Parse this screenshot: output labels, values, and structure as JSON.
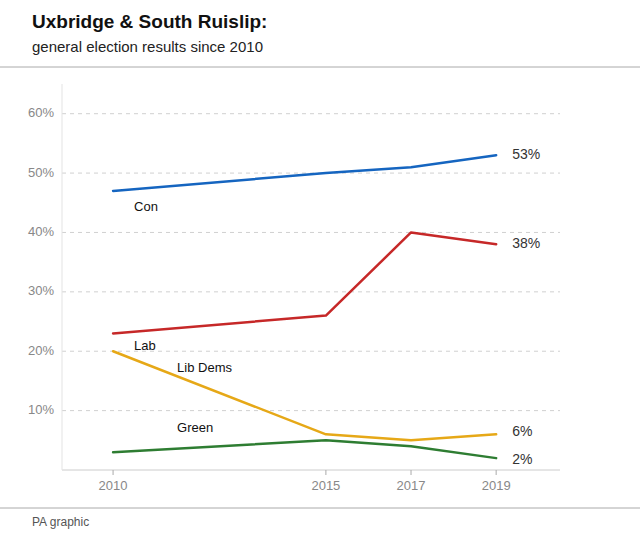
{
  "chart_data": {
    "type": "line",
    "title": "Uxbridge & South Ruislip:",
    "subtitle": "general election results since 2010",
    "footer": "PA graphic",
    "x": [
      2010,
      2015,
      2017,
      2019
    ],
    "xlim": [
      2008.8,
      2020.5
    ],
    "xticks": [
      2010,
      2015,
      2017,
      2019
    ],
    "ylim": [
      0,
      65
    ],
    "yticks": [
      {
        "value": 10,
        "label": "10%"
      },
      {
        "value": 20,
        "label": "20%"
      },
      {
        "value": 30,
        "label": "30%"
      },
      {
        "value": 40,
        "label": "40%"
      },
      {
        "value": 50,
        "label": "50%"
      },
      {
        "value": 60,
        "label": "60%"
      }
    ],
    "grid": true,
    "data_labels": true,
    "series": [
      {
        "name": "Con",
        "color": "#1565C0",
        "values": [
          47,
          50,
          51,
          53
        ],
        "value_labels": [
          null,
          null,
          null,
          "53%"
        ]
      },
      {
        "name": "Lab",
        "color": "#C62828",
        "values": [
          23,
          26,
          40,
          38
        ],
        "value_labels": [
          null,
          null,
          null,
          "38%"
        ]
      },
      {
        "name": "Lib Dems",
        "color": "#E6A817",
        "values": [
          20,
          6,
          5,
          6
        ],
        "value_labels": [
          null,
          null,
          null,
          "6%"
        ]
      },
      {
        "name": "Green",
        "color": "#2E7D32",
        "values": [
          3,
          5,
          4,
          2
        ],
        "value_labels": [
          null,
          null,
          null,
          "2%"
        ]
      }
    ]
  }
}
